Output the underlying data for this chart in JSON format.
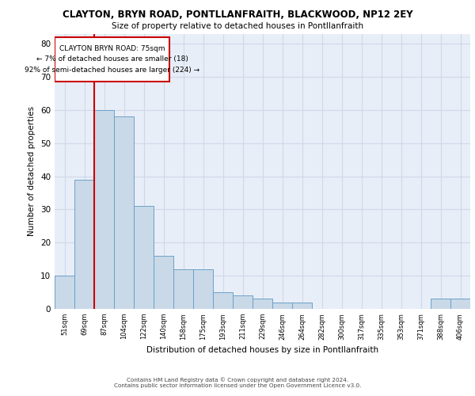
{
  "title": "CLAYTON, BRYN ROAD, PONTLLANFRAITH, BLACKWOOD, NP12 2EY",
  "subtitle": "Size of property relative to detached houses in Pontllanfraith",
  "xlabel": "Distribution of detached houses by size in Pontllanfraith",
  "ylabel": "Number of detached properties",
  "categories": [
    "51sqm",
    "69sqm",
    "87sqm",
    "104sqm",
    "122sqm",
    "140sqm",
    "158sqm",
    "175sqm",
    "193sqm",
    "211sqm",
    "229sqm",
    "246sqm",
    "264sqm",
    "282sqm",
    "300sqm",
    "317sqm",
    "335sqm",
    "353sqm",
    "371sqm",
    "388sqm",
    "406sqm"
  ],
  "values": [
    10,
    39,
    60,
    58,
    31,
    16,
    12,
    12,
    5,
    4,
    3,
    2,
    2,
    0,
    0,
    0,
    0,
    0,
    0,
    3,
    3
  ],
  "bar_color": "#c9d9e8",
  "bar_edge_color": "#6ca0c8",
  "grid_color": "#d0d8e8",
  "background_color": "#e8eef8",
  "vline_color": "#cc0000",
  "annotation_box_text": "CLAYTON BRYN ROAD: 75sqm\n← 7% of detached houses are smaller (18)\n92% of semi-detached houses are larger (224) →",
  "ylim": [
    0,
    83
  ],
  "yticks": [
    0,
    10,
    20,
    30,
    40,
    50,
    60,
    70,
    80
  ],
  "footer_line1": "Contains HM Land Registry data © Crown copyright and database right 2024.",
  "footer_line2": "Contains public sector information licensed under the Open Government Licence v3.0."
}
